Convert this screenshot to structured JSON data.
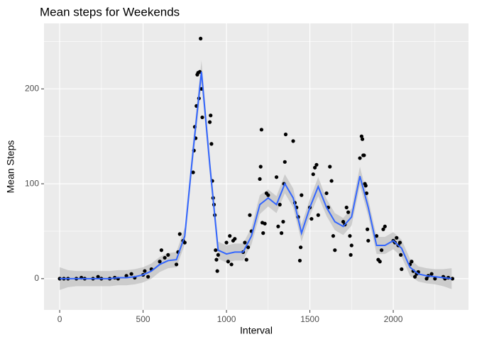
{
  "chart_data": {
    "type": "scatter",
    "title": "Mean steps for Weekends",
    "x_label": "Interval",
    "y_label": "Mean Steps",
    "xlim": [
      -94,
      2451
    ],
    "ylim": [
      -33,
      269
    ],
    "xticks": [
      0,
      500,
      1000,
      1500,
      2000
    ],
    "yticks": [
      0,
      100,
      200
    ],
    "grid": true,
    "point_color": "#000000",
    "x": [
      0,
      25,
      50,
      100,
      130,
      150,
      200,
      230,
      250,
      300,
      330,
      350,
      400,
      430,
      450,
      500,
      510,
      530,
      550,
      600,
      610,
      630,
      650,
      700,
      710,
      720,
      740,
      750,
      800,
      805,
      810,
      815,
      820,
      825,
      830,
      835,
      840,
      845,
      850,
      855,
      900,
      905,
      910,
      915,
      920,
      925,
      930,
      935,
      940,
      945,
      950,
      1000,
      1010,
      1020,
      1030,
      1040,
      1050,
      1100,
      1110,
      1120,
      1130,
      1140,
      1150,
      1200,
      1205,
      1210,
      1215,
      1220,
      1230,
      1240,
      1250,
      1300,
      1310,
      1320,
      1330,
      1340,
      1345,
      1350,
      1355,
      1400,
      1410,
      1420,
      1430,
      1440,
      1445,
      1450,
      1500,
      1510,
      1520,
      1530,
      1540,
      1550,
      1600,
      1610,
      1620,
      1630,
      1640,
      1650,
      1700,
      1710,
      1720,
      1730,
      1740,
      1745,
      1750,
      1800,
      1810,
      1815,
      1820,
      1825,
      1830,
      1835,
      1840,
      1845,
      1850,
      1900,
      1910,
      1920,
      1930,
      1940,
      1950,
      2000,
      2010,
      2020,
      2030,
      2040,
      2045,
      2050,
      2100,
      2110,
      2120,
      2130,
      2140,
      2150,
      2200,
      2210,
      2230,
      2250,
      2300,
      2310,
      2330,
      2355
    ],
    "values": [
      0,
      0,
      0,
      0,
      1,
      0,
      0,
      2,
      0,
      0,
      1,
      0,
      3,
      5,
      1,
      4,
      8,
      2,
      10,
      18,
      30,
      22,
      25,
      15,
      28,
      47,
      40,
      38,
      112,
      135,
      160,
      148,
      182,
      215,
      217,
      190,
      218,
      253,
      200,
      170,
      165,
      172,
      142,
      103,
      85,
      78,
      67,
      30,
      20,
      8,
      25,
      38,
      18,
      45,
      15,
      40,
      42,
      28,
      38,
      20,
      33,
      67,
      50,
      105,
      118,
      157,
      59,
      48,
      58,
      90,
      88,
      107,
      55,
      78,
      48,
      60,
      100,
      123,
      152,
      145,
      80,
      75,
      65,
      19,
      33,
      88,
      75,
      63,
      110,
      117,
      120,
      67,
      90,
      75,
      118,
      103,
      45,
      30,
      60,
      57,
      75,
      70,
      45,
      25,
      35,
      127,
      150,
      147,
      130,
      130,
      100,
      98,
      90,
      52,
      40,
      45,
      20,
      18,
      30,
      52,
      55,
      40,
      38,
      43,
      35,
      38,
      25,
      10,
      15,
      18,
      8,
      2,
      5,
      7,
      0,
      3,
      5,
      0,
      2,
      0,
      1,
      0
    ],
    "smooth": {
      "color": "#3366ff",
      "band_color": "#c4c4c4",
      "x": [
        0,
        50,
        100,
        150,
        200,
        250,
        300,
        350,
        400,
        450,
        500,
        550,
        600,
        650,
        700,
        750,
        800,
        850,
        900,
        950,
        1000,
        1050,
        1100,
        1150,
        1200,
        1250,
        1300,
        1350,
        1400,
        1450,
        1500,
        1550,
        1600,
        1650,
        1700,
        1750,
        1800,
        1850,
        1900,
        1950,
        2000,
        2050,
        2100,
        2150,
        2200,
        2250,
        2300,
        2350
      ],
      "values": [
        0,
        0,
        0,
        0,
        0,
        0,
        0,
        1,
        1,
        2,
        4,
        8,
        15,
        19,
        20,
        45,
        135,
        218,
        120,
        30,
        26,
        28,
        28,
        45,
        78,
        85,
        78,
        100,
        85,
        48,
        75,
        97,
        75,
        60,
        55,
        65,
        108,
        75,
        35,
        35,
        40,
        32,
        12,
        5,
        3,
        2,
        1,
        0
      ],
      "lower": [
        -12,
        -9,
        -8,
        -8,
        -8,
        -8,
        -8,
        -7,
        -7,
        -6,
        -4,
        0,
        7,
        11,
        12,
        36,
        125,
        206,
        110,
        21,
        17,
        19,
        19,
        36,
        68,
        76,
        69,
        90,
        75,
        39,
        66,
        87,
        66,
        51,
        46,
        56,
        98,
        66,
        26,
        26,
        31,
        23,
        3,
        -3,
        -5,
        -6,
        -8,
        -11
      ],
      "upper": [
        12,
        9,
        8,
        8,
        8,
        8,
        8,
        9,
        9,
        10,
        12,
        16,
        23,
        27,
        28,
        54,
        145,
        230,
        130,
        39,
        35,
        37,
        37,
        54,
        88,
        94,
        87,
        110,
        95,
        57,
        84,
        107,
        84,
        69,
        64,
        74,
        118,
        84,
        44,
        44,
        49,
        41,
        21,
        13,
        11,
        10,
        10,
        11
      ]
    }
  }
}
